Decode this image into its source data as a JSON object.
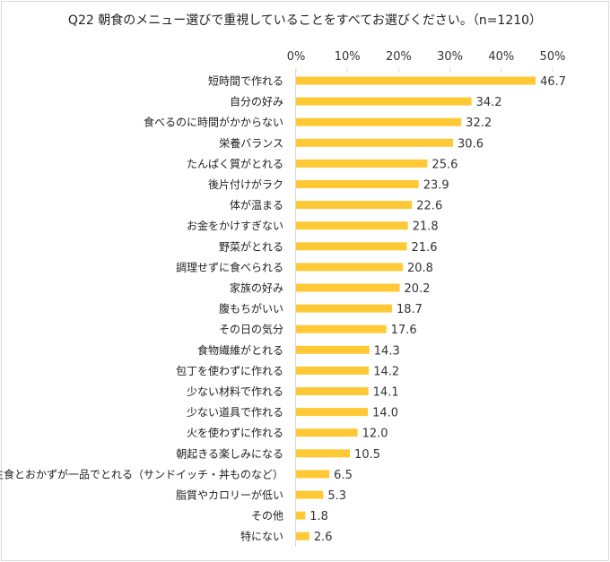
{
  "chart_data": {
    "type": "bar",
    "orientation": "horizontal",
    "title": "Q22 朝食のメニュー選びで重視していることをすべてお選びください。（n=1210）",
    "xlabel": "",
    "ylabel": "",
    "xlim": [
      0,
      50
    ],
    "ticks": [
      "0%",
      "10%",
      "20%",
      "30%",
      "40%",
      "50%"
    ],
    "tick_values": [
      0,
      10,
      20,
      30,
      40,
      50
    ],
    "bar_color": "#ffc935",
    "categories": [
      "短時間で作れる",
      "自分の好み",
      "食べるのに時間がかからない",
      "栄養バランス",
      "たんぱく質がとれる",
      "後片付けがラク",
      "体が温まる",
      "お金をかけすぎない",
      "野菜がとれる",
      "調理せずに食べられる",
      "家族の好み",
      "腹もちがいい",
      "その日の気分",
      "食物繊維がとれる",
      "包丁を使わずに作れる",
      "少ない材料で作れる",
      "少ない道具で作れる",
      "火を使わずに作れる",
      "朝起きる楽しみになる",
      "主食とおかずが一品でとれる（サンドイッチ・丼ものなど）",
      "脂質やカロリーが低い",
      "その他",
      "特にない"
    ],
    "values": [
      46.7,
      34.2,
      32.2,
      30.6,
      25.6,
      23.9,
      22.6,
      21.8,
      21.6,
      20.8,
      20.2,
      18.7,
      17.6,
      14.3,
      14.2,
      14.1,
      14.0,
      12.0,
      10.5,
      6.5,
      5.3,
      1.8,
      2.6
    ],
    "value_labels": [
      "46.7",
      "34.2",
      "32.2",
      "30.6",
      "25.6",
      "23.9",
      "22.6",
      "21.8",
      "21.6",
      "20.8",
      "20.2",
      "18.7",
      "17.6",
      "14.3",
      "14.2",
      "14.1",
      "14.0",
      "12.0",
      "10.5",
      "6.5",
      "5.3",
      "1.8",
      "2.6"
    ],
    "grid": false,
    "legend": "none"
  }
}
